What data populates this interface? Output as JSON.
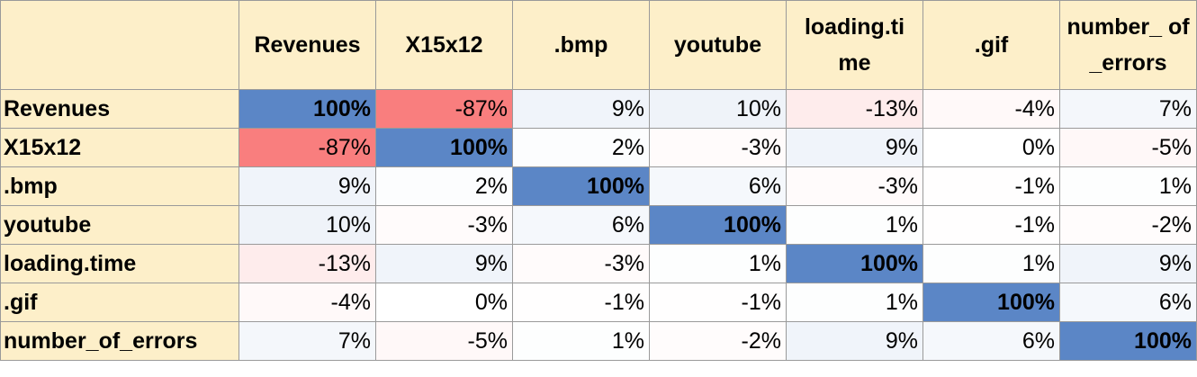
{
  "chart_data": {
    "type": "heatmap",
    "variables": [
      "Revenues",
      "X15x12",
      ".bmp",
      "youtube",
      "loading.time",
      ".gif",
      "number_of_errors"
    ],
    "column_headers": [
      "Revenues",
      "X15x12",
      ".bmp",
      "youtube",
      "loading.ti me",
      ".gif",
      "number_ of_errors"
    ],
    "values": [
      [
        100,
        -87,
        9,
        10,
        -13,
        -4,
        7
      ],
      [
        -87,
        100,
        2,
        -3,
        9,
        0,
        -5
      ],
      [
        9,
        2,
        100,
        6,
        -3,
        -1,
        1
      ],
      [
        10,
        -3,
        6,
        100,
        1,
        -1,
        -2
      ],
      [
        -13,
        9,
        -3,
        1,
        100,
        1,
        9
      ],
      [
        -4,
        0,
        -1,
        -1,
        1,
        100,
        6
      ],
      [
        7,
        -5,
        1,
        -2,
        9,
        6,
        100
      ]
    ],
    "labels": [
      [
        "100%",
        "-87%",
        "9%",
        "10%",
        "-13%",
        "-4%",
        "7%"
      ],
      [
        "-87%",
        "100%",
        "2%",
        "-3%",
        "9%",
        "0%",
        "-5%"
      ],
      [
        "9%",
        "2%",
        "100%",
        "6%",
        "-3%",
        "-1%",
        "1%"
      ],
      [
        "10%",
        "-3%",
        "6%",
        "100%",
        "1%",
        "-1%",
        "-2%"
      ],
      [
        "-13%",
        "9%",
        "-3%",
        "1%",
        "100%",
        "1%",
        "9%"
      ],
      [
        "-4%",
        "0%",
        "-1%",
        "-1%",
        "1%",
        "100%",
        "6%"
      ],
      [
        "7%",
        "-5%",
        "1%",
        "-2%",
        "9%",
        "6%",
        "100%"
      ]
    ],
    "value_range": [
      -100,
      100
    ],
    "colors": {
      "positive": "#5b86c6",
      "negative": "#f86b6b",
      "neutral": "#ffffff",
      "header_bg": "#fdefc9",
      "grid": "#9a9a9a"
    }
  }
}
